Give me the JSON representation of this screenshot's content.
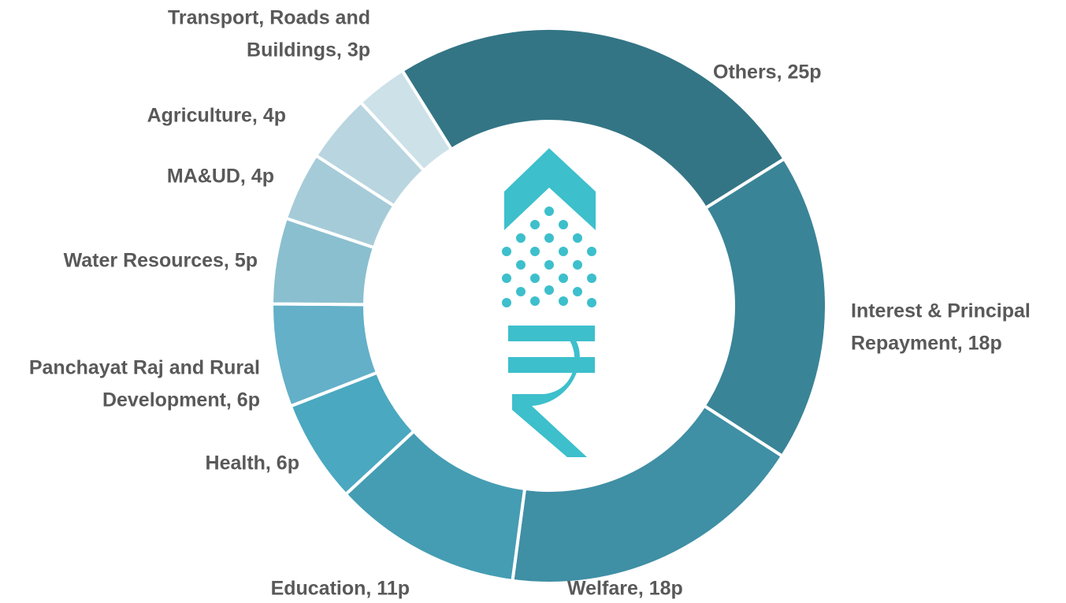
{
  "chart_data": {
    "type": "donut",
    "values": [
      25,
      18,
      18,
      11,
      6,
      6,
      5,
      4,
      4,
      3
    ],
    "value_labels": [
      [
        "Others, 25p"
      ],
      [
        "Interest & Principal",
        "Repayment, 18p"
      ],
      [
        "Welfare, 18p"
      ],
      [
        "Education, 11p"
      ],
      [
        "Health, 6p"
      ],
      [
        "Panchayat Raj and Rural",
        "Development, 6p"
      ],
      [
        "Water Resources, 5p"
      ],
      [
        "MA&UD, 4p"
      ],
      [
        "Agriculture, 4p"
      ],
      [
        "Transport, Roads and",
        "Buildings, 3p"
      ]
    ],
    "colors": [
      "#337585",
      "#3a8497",
      "#3f8fa5",
      "#459db3",
      "#4aa8c0",
      "#63b0c8",
      "#8abfcf",
      "#a6cbd8",
      "#b9d5e0",
      "#cde1e9"
    ]
  }
}
